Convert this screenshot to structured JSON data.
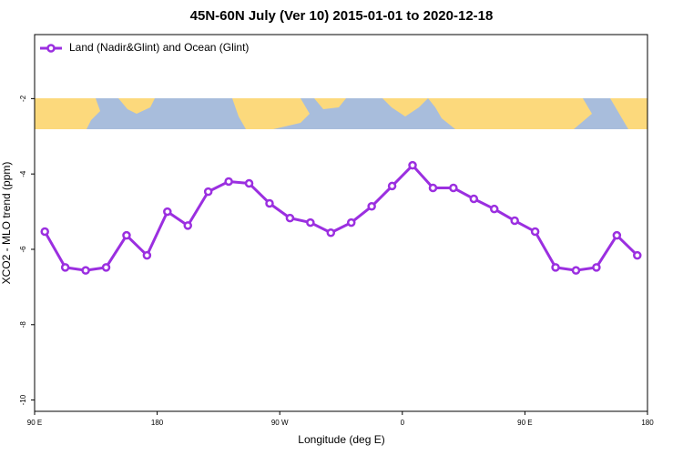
{
  "chart_data": {
    "type": "line",
    "title": "45N-60N July (Ver 10)   2015-01-01 to 2020-12-18",
    "xlabel": "Longitude (deg E)",
    "ylabel": "XCO2 - MLO trend (ppm)",
    "x": [
      97.5,
      112.5,
      127.5,
      142.5,
      157.5,
      172.5,
      187.5,
      202.5,
      217.5,
      232.5,
      247.5,
      262.5,
      277.5,
      292.5,
      307.5,
      322.5,
      337.5,
      352.5,
      367.5,
      382.5,
      397.5,
      412.5,
      427.5,
      442.5,
      457.5,
      472.5,
      487.5,
      502.5,
      517.5,
      532.5
    ],
    "series": [
      {
        "name": "Land (Nadir&Glint) and Ocean (Glint)",
        "color": "#9b2fe0",
        "values": [
          -5.53,
          -6.48,
          -6.56,
          -6.48,
          -5.63,
          -6.16,
          -5.0,
          -5.37,
          -4.47,
          -4.2,
          -4.25,
          -4.78,
          -5.17,
          -5.29,
          -5.56,
          -5.29,
          -4.86,
          -4.32,
          -3.77,
          -4.37,
          -4.37,
          -4.66,
          -4.93,
          -5.24,
          -5.53,
          -6.48,
          -6.56,
          -6.48,
          -5.63,
          -6.16
        ]
      }
    ],
    "xlim": [
      90,
      540
    ],
    "xticks": [
      {
        "value": 90,
        "label": "90 E"
      },
      {
        "value": 180,
        "label": "180"
      },
      {
        "value": 270,
        "label": "90 W"
      },
      {
        "value": 360,
        "label": "0"
      },
      {
        "value": 450,
        "label": "90 E"
      },
      {
        "value": 540,
        "label": "180"
      }
    ],
    "ylim": [
      -10.3,
      -0.3
    ],
    "yticks": [
      -2,
      -4,
      -6,
      -8,
      -10
    ],
    "legend": "top-left"
  }
}
